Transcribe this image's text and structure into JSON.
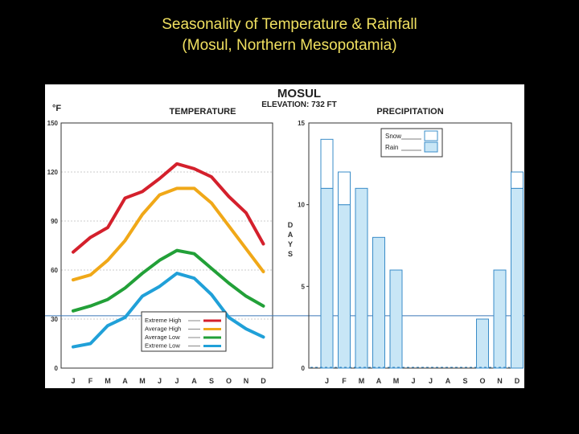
{
  "slide": {
    "title_line1": "Seasonality of Temperature & Rainfall",
    "title_line2": "(Mosul, Northern Mesopotamia)"
  },
  "figure": {
    "station": "MOSUL",
    "elevation": "ELEVATION: 732 FT"
  },
  "chart_data": [
    {
      "type": "line",
      "title": "TEMPERATURE",
      "ylabel": "°F",
      "xlabel": "",
      "categories": [
        "J",
        "F",
        "M",
        "A",
        "M",
        "J",
        "J",
        "A",
        "S",
        "O",
        "N",
        "D"
      ],
      "ylim": [
        0,
        150
      ],
      "yticks": [
        0,
        30,
        60,
        90,
        120,
        150
      ],
      "reference_line": 32,
      "legend_position": "bottom-left",
      "series": [
        {
          "name": "Extreme High",
          "color": "#d4202c",
          "values": [
            71,
            80,
            86,
            104,
            108,
            116,
            125,
            122,
            117,
            105,
            95,
            76
          ]
        },
        {
          "name": "Average High",
          "color": "#f0a818",
          "values": [
            54,
            57,
            66,
            78,
            94,
            106,
            110,
            110,
            101,
            87,
            73,
            59
          ]
        },
        {
          "name": "Average Low",
          "color": "#22a038",
          "values": [
            35,
            38,
            42,
            49,
            58,
            66,
            72,
            70,
            61,
            52,
            44,
            38
          ]
        },
        {
          "name": "Extreme Low",
          "color": "#20a0d8",
          "values": [
            13,
            15,
            26,
            31,
            44,
            50,
            58,
            55,
            45,
            31,
            24,
            19
          ]
        }
      ]
    },
    {
      "type": "bar",
      "title": "PRECIPITATION",
      "ylabel": "DAYS",
      "xlabel": "",
      "categories": [
        "J",
        "F",
        "M",
        "A",
        "M",
        "J",
        "J",
        "A",
        "S",
        "O",
        "N",
        "D"
      ],
      "ylim": [
        0,
        15
      ],
      "yticks": [
        0,
        5,
        10,
        15
      ],
      "stacked": true,
      "legend_position": "top-right",
      "series": [
        {
          "name": "Rain",
          "color": "#c8e6f6",
          "values": [
            11,
            10,
            11,
            8,
            6,
            0,
            0,
            0,
            0,
            3,
            6,
            11
          ]
        },
        {
          "name": "Snow",
          "color": "#ffffff",
          "values": [
            3,
            2,
            0,
            0,
            0,
            0,
            0,
            0,
            0,
            0,
            0,
            1
          ]
        }
      ]
    }
  ]
}
